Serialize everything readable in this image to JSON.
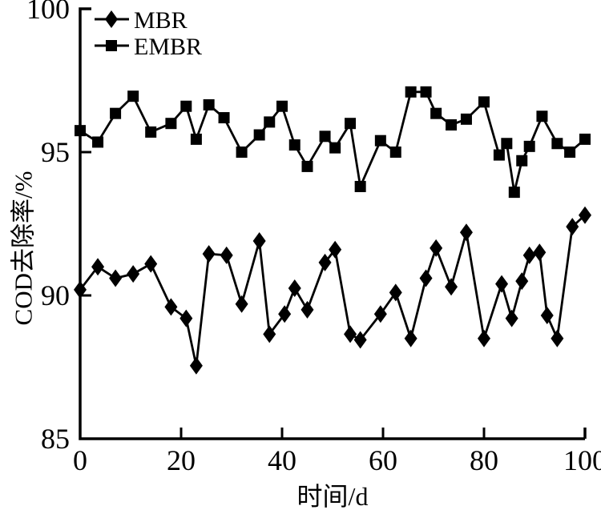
{
  "figure": {
    "background_color": "#ffffff",
    "ink_color": "#000000"
  },
  "chart_data": {
    "type": "line",
    "title": "",
    "xlabel": "时间/d",
    "ylabel": "COD去除率/%",
    "xlim": [
      0,
      100
    ],
    "ylim": [
      85,
      100
    ],
    "x_ticks": [
      0,
      20,
      40,
      60,
      80,
      100
    ],
    "y_ticks": [
      85,
      90,
      95,
      100
    ],
    "grid": false,
    "legend_position": "top-left-inside",
    "series": [
      {
        "name": "MBR",
        "marker": "diamond",
        "color": "#000000",
        "x": [
          0,
          3.5,
          7,
          10.5,
          14,
          18,
          21,
          23,
          25.5,
          29,
          32,
          35.5,
          37.5,
          40.5,
          42.5,
          45,
          48.5,
          50.5,
          53.5,
          55.5,
          59.5,
          62.5,
          65.5,
          68.5,
          70.5,
          73.5,
          76.5,
          80,
          83.5,
          85.5,
          87.5,
          89,
          91,
          92.5,
          94.5,
          97.5,
          100
        ],
        "values": [
          90.2,
          91.0,
          90.6,
          90.75,
          91.1,
          89.6,
          89.2,
          87.55,
          91.45,
          91.4,
          89.7,
          91.9,
          88.65,
          89.35,
          90.25,
          89.5,
          91.15,
          91.6,
          88.65,
          88.45,
          89.35,
          90.1,
          88.5,
          90.6,
          91.65,
          90.3,
          92.2,
          88.5,
          90.4,
          89.2,
          90.5,
          91.4,
          91.5,
          89.3,
          88.5,
          92.4,
          92.8
        ]
      },
      {
        "name": "EMBR",
        "marker": "square",
        "color": "#000000",
        "x": [
          0,
          3.5,
          7,
          10.5,
          14,
          18,
          21,
          23,
          25.5,
          28.5,
          32,
          35.5,
          37.5,
          40,
          42.5,
          45,
          48.5,
          50.5,
          53.5,
          55.5,
          59.5,
          62.5,
          65.5,
          68.5,
          70.5,
          73.5,
          76.5,
          80,
          83,
          84.5,
          86,
          87.5,
          89,
          91.5,
          94.5,
          97,
          100
        ],
        "values": [
          95.75,
          95.35,
          96.35,
          96.95,
          95.7,
          96.0,
          96.6,
          95.45,
          96.65,
          96.2,
          95.0,
          95.6,
          96.05,
          96.6,
          95.25,
          94.5,
          95.55,
          95.15,
          96.0,
          93.8,
          95.4,
          95.0,
          97.1,
          97.1,
          96.35,
          95.95,
          96.15,
          96.75,
          94.9,
          95.3,
          93.6,
          94.7,
          95.2,
          96.25,
          95.3,
          95.0,
          95.45
        ]
      }
    ]
  }
}
